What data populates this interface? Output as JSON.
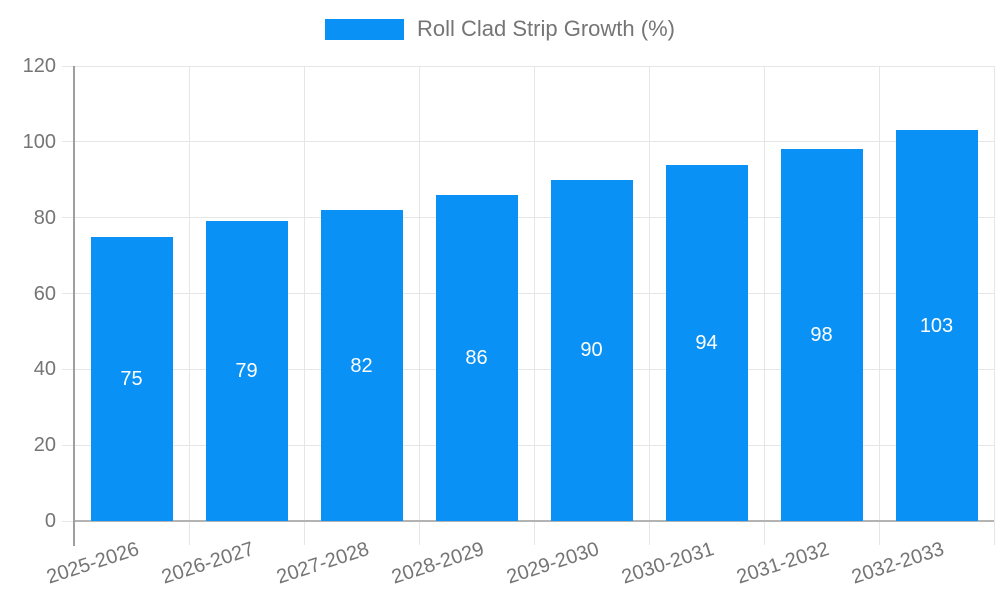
{
  "chart_data": {
    "type": "bar",
    "title": "",
    "legend_position": "top",
    "categories": [
      "2025-2026",
      "2026-2027",
      "2027-2028",
      "2028-2029",
      "2029-2030",
      "2030-2031",
      "2031-2032",
      "2032-2033"
    ],
    "series": [
      {
        "name": "Roll Clad Strip Growth (%)",
        "values": [
          75,
          79,
          82,
          86,
          90,
          94,
          98,
          103
        ]
      }
    ],
    "annotations": [
      "75",
      "79",
      "82",
      "86",
      "90",
      "94",
      "98",
      "103"
    ],
    "y_ticks": [
      0,
      20,
      40,
      60,
      80,
      100,
      120
    ],
    "ylim": [
      0,
      120
    ],
    "xlabel": "",
    "ylabel": "",
    "grid": true,
    "colors": {
      "bar": "#0991f5",
      "gridline": "#e6e6e6",
      "baseline": "#b3b3b3",
      "axis_line": "#9e9e9e",
      "axis_text": "#757575",
      "annotation_text": "#ffffff"
    }
  }
}
